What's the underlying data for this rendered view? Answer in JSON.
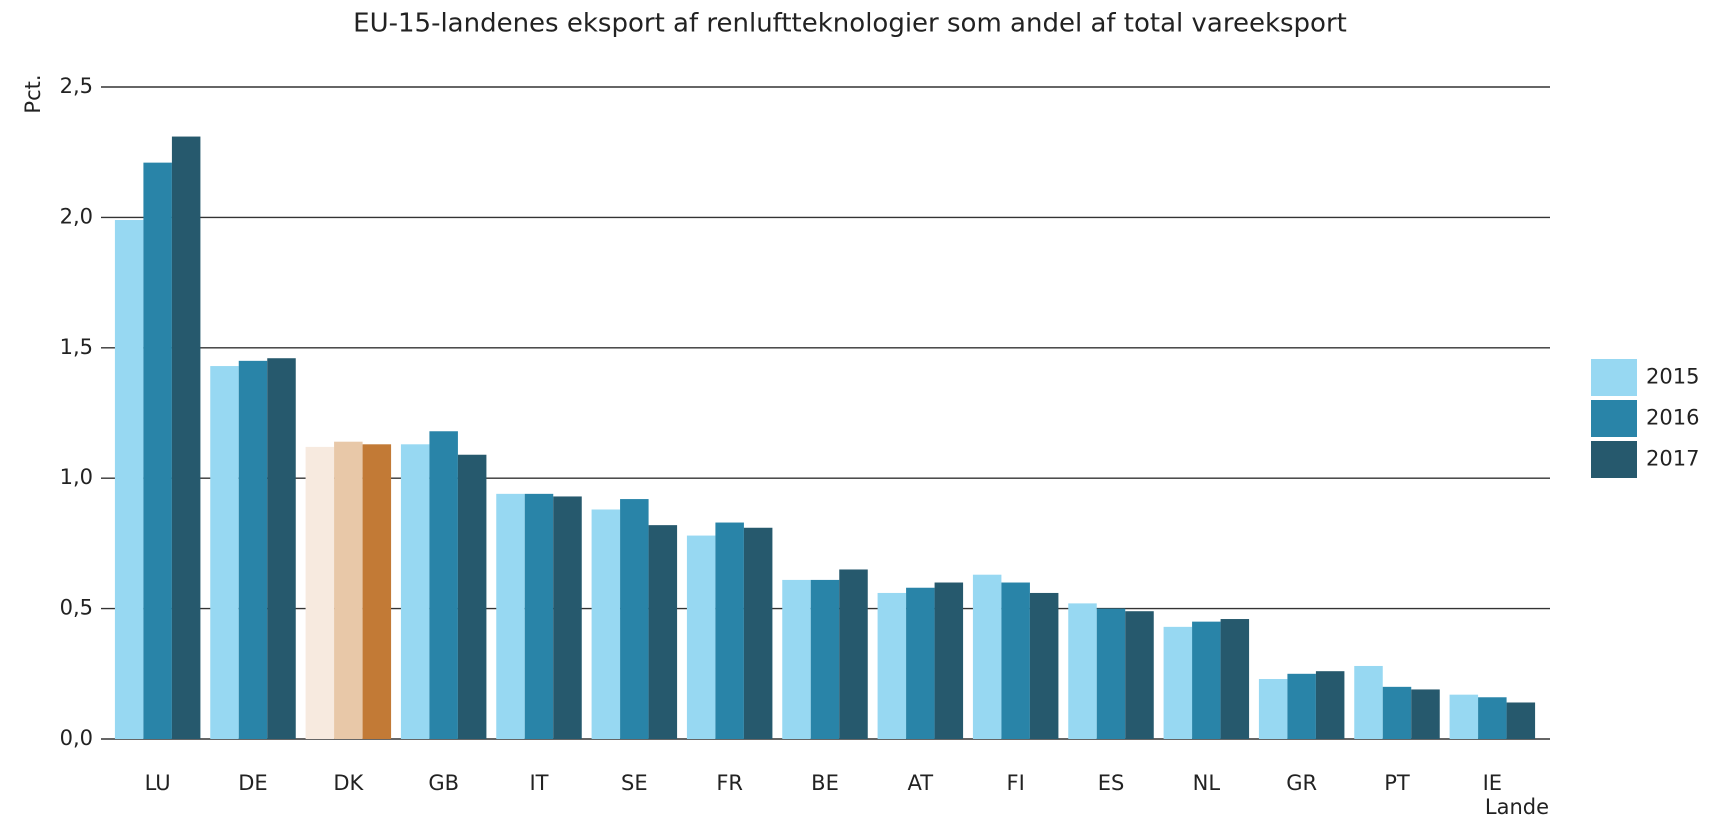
{
  "chart_data": {
    "type": "bar",
    "title": "EU-15-landenes eksport af renluftteknologier som andel af total vareeksport",
    "ylabel": "Pct.",
    "xlabel": "Lande",
    "categories": [
      "LU",
      "DE",
      "DK",
      "GB",
      "IT",
      "SE",
      "FR",
      "BE",
      "AT",
      "FI",
      "ES",
      "NL",
      "GR",
      "PT",
      "IE"
    ],
    "series": [
      {
        "name": "2015",
        "color": "#97d8f2",
        "values": [
          1.99,
          1.43,
          1.12,
          1.13,
          0.94,
          0.88,
          0.78,
          0.61,
          0.56,
          0.63,
          0.52,
          0.43,
          0.23,
          0.28,
          0.17
        ]
      },
      {
        "name": "2016",
        "color": "#2984a8",
        "values": [
          2.21,
          1.45,
          1.14,
          1.18,
          0.94,
          0.92,
          0.83,
          0.61,
          0.58,
          0.6,
          0.5,
          0.45,
          0.25,
          0.2,
          0.16
        ]
      },
      {
        "name": "2017",
        "color": "#26596d",
        "values": [
          2.31,
          1.46,
          1.13,
          1.09,
          0.93,
          0.82,
          0.81,
          0.65,
          0.6,
          0.56,
          0.49,
          0.46,
          0.26,
          0.19,
          0.14
        ]
      }
    ],
    "highlight": {
      "category": "DK",
      "colors": [
        "#f7eadf",
        "#e8c8a8",
        "#c27a36"
      ]
    },
    "ylim": [
      0,
      2.5
    ],
    "yticks": [
      {
        "value": 0,
        "label": "0,0"
      },
      {
        "value": 0.5,
        "label": "0,5"
      },
      {
        "value": 1,
        "label": "1,0"
      },
      {
        "value": 1.5,
        "label": "1,5"
      },
      {
        "value": 2,
        "label": "2,0"
      },
      {
        "value": 2.5,
        "label": "2,5"
      }
    ],
    "grid": true,
    "legend": "right"
  }
}
